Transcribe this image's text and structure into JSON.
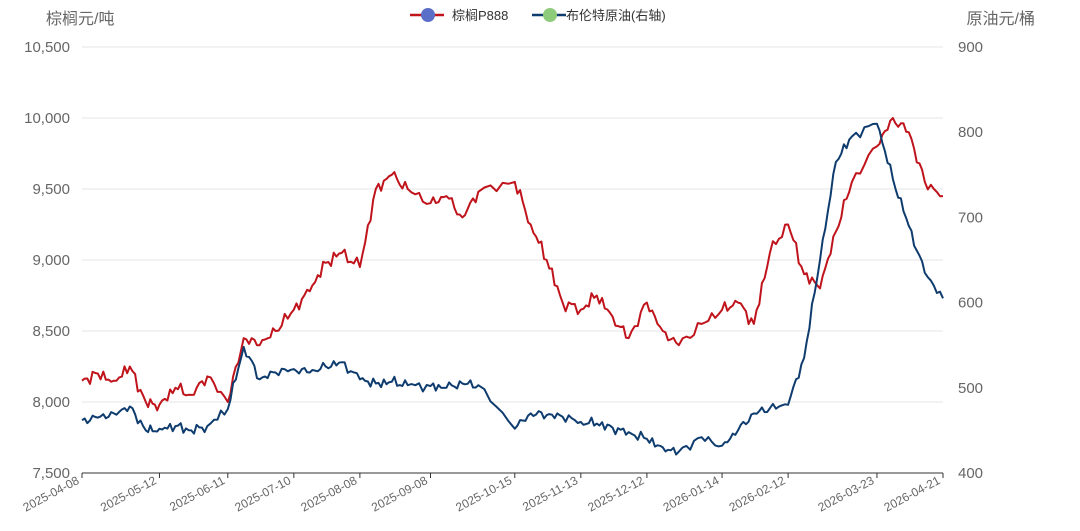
{
  "chart_data": {
    "type": "line",
    "left_axis_unit": "棕榈元/吨",
    "right_axis_unit": "原油元/桶",
    "legend": [
      {
        "name": "棕榈P888",
        "color": "#c0141c",
        "marker_color": "#5b6fc9"
      },
      {
        "name": "布伦特原油(右轴)",
        "color": "#0f3c6e",
        "marker_color": "#8ecb7a"
      }
    ],
    "y_left": {
      "min": 7500,
      "max": 10500,
      "ticks": [
        "7,500",
        "8,000",
        "8,500",
        "9,000",
        "9,500",
        "10,000",
        "10,500"
      ]
    },
    "y_right": {
      "min": 400,
      "max": 900,
      "ticks": [
        "400",
        "500",
        "600",
        "700",
        "800",
        "900"
      ]
    },
    "x_ticks": [
      "2025-04-08",
      "2025-05-12",
      "2025-06-11",
      "2025-07-10",
      "2025-08-08",
      "2025-09-08",
      "2025-10-15",
      "2025-11-13",
      "2025-12-12",
      "2026-01-14",
      "2026-02-12",
      "2026-03-23",
      "2026-04-21"
    ],
    "series": [
      {
        "name": "棕榈P888",
        "axis": "left",
        "x": [
          "2025-04-08",
          "2025-04-15",
          "2025-04-22",
          "2025-04-29",
          "2025-05-06",
          "2025-05-12",
          "2025-05-19",
          "2025-05-26",
          "2025-06-02",
          "2025-06-11",
          "2025-06-18",
          "2025-06-25",
          "2025-07-02",
          "2025-07-10",
          "2025-07-17",
          "2025-07-24",
          "2025-07-31",
          "2025-08-08",
          "2025-08-15",
          "2025-08-22",
          "2025-08-29",
          "2025-09-08",
          "2025-09-15",
          "2025-09-22",
          "2025-09-29",
          "2025-10-15",
          "2025-10-22",
          "2025-10-29",
          "2025-11-05",
          "2025-11-13",
          "2025-11-20",
          "2025-11-27",
          "2025-12-04",
          "2025-12-12",
          "2025-12-19",
          "2025-12-26",
          "2026-01-05",
          "2026-01-14",
          "2026-01-21",
          "2026-01-28",
          "2026-02-04",
          "2026-02-12",
          "2026-02-19",
          "2026-02-26",
          "2026-03-05",
          "2026-03-12",
          "2026-03-23",
          "2026-03-30",
          "2026-04-06",
          "2026-04-13",
          "2026-04-21"
        ],
        "values": [
          8150,
          8200,
          8150,
          8250,
          8000,
          7980,
          8100,
          8050,
          8180,
          8000,
          8450,
          8400,
          8500,
          8650,
          8780,
          8980,
          9050,
          8950,
          9500,
          9600,
          9500,
          9400,
          9450,
          9300,
          9480,
          9550,
          9250,
          9000,
          8700,
          8650,
          8750,
          8600,
          8450,
          8700,
          8500,
          8400,
          8550,
          8650,
          8700,
          8550,
          9050,
          9250,
          8900,
          8800,
          9200,
          9550,
          9800,
          10000,
          9900,
          9550,
          9450
        ]
      },
      {
        "name": "布伦特原油(右轴)",
        "axis": "right",
        "x": [
          "2025-04-08",
          "2025-04-15",
          "2025-04-22",
          "2025-04-29",
          "2025-05-06",
          "2025-05-12",
          "2025-05-19",
          "2025-05-26",
          "2025-06-02",
          "2025-06-11",
          "2025-06-18",
          "2025-06-25",
          "2025-07-02",
          "2025-07-10",
          "2025-07-17",
          "2025-07-24",
          "2025-07-31",
          "2025-08-08",
          "2025-08-15",
          "2025-08-22",
          "2025-08-29",
          "2025-09-08",
          "2025-09-15",
          "2025-09-22",
          "2025-09-29",
          "2025-10-15",
          "2025-10-22",
          "2025-10-29",
          "2025-11-05",
          "2025-11-13",
          "2025-11-20",
          "2025-11-27",
          "2025-12-04",
          "2025-12-12",
          "2025-12-19",
          "2025-12-26",
          "2026-01-05",
          "2026-01-14",
          "2026-01-21",
          "2026-01-28",
          "2026-02-04",
          "2026-02-12",
          "2026-02-19",
          "2026-02-26",
          "2026-03-05",
          "2026-03-12",
          "2026-03-23",
          "2026-03-30",
          "2026-04-06",
          "2026-04-13",
          "2026-04-21"
        ],
        "values": [
          462,
          465,
          470,
          478,
          450,
          452,
          455,
          450,
          455,
          475,
          548,
          510,
          518,
          522,
          518,
          525,
          530,
          510,
          505,
          507,
          503,
          502,
          500,
          505,
          503,
          452,
          470,
          468,
          466,
          460,
          458,
          453,
          448,
          440,
          430,
          425,
          442,
          432,
          450,
          470,
          476,
          480,
          535,
          650,
          765,
          795,
          810,
          745,
          690,
          635,
          605
        ]
      }
    ]
  }
}
